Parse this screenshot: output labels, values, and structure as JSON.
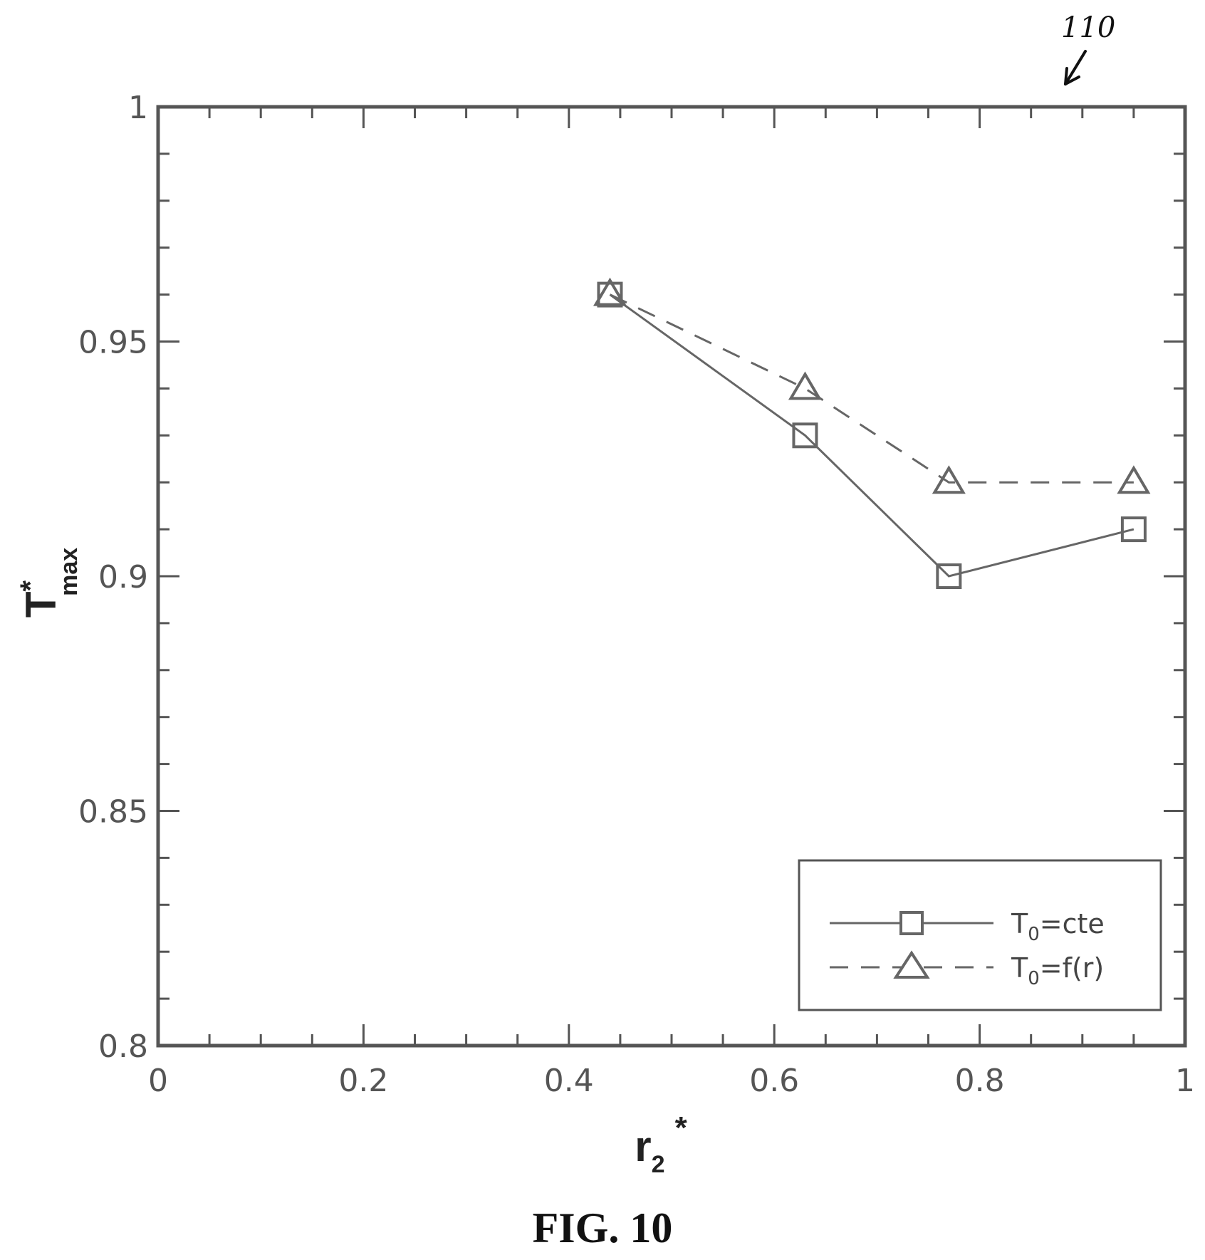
{
  "figure": {
    "caption": "FIG. 10",
    "reference_numeral": "110"
  },
  "chart_data": {
    "type": "line",
    "x_label": "r",
    "x_label_sub": "2",
    "x_label_sup": "*",
    "y_label": "T",
    "y_label_sup": "*",
    "y_label_sub": "max",
    "xlim": [
      0,
      1
    ],
    "ylim": [
      0.8,
      1
    ],
    "x_ticks": [
      0,
      0.2,
      0.4,
      0.6,
      0.8,
      1
    ],
    "x_tick_labels": [
      "0",
      "0.2",
      "0.4",
      "0.6",
      "0.8",
      "1"
    ],
    "y_ticks": [
      0.8,
      0.85,
      0.9,
      0.95,
      1
    ],
    "y_tick_labels": [
      "0.8",
      "0.85",
      "0.9",
      "0.95",
      "1"
    ],
    "grid": false,
    "legend_position": "bottom-right",
    "series": [
      {
        "name": "T0=cte",
        "legend_main": "T",
        "legend_sub": "0",
        "legend_rest": "=cte",
        "marker": "square",
        "line": "solid",
        "color": "#666666",
        "x": [
          0.44,
          0.63,
          0.77,
          0.95
        ],
        "y": [
          0.96,
          0.93,
          0.9,
          0.91
        ]
      },
      {
        "name": "T0=f(r)",
        "legend_main": "T",
        "legend_sub": "0",
        "legend_rest": "=f(r)",
        "marker": "triangle",
        "line": "dashed",
        "color": "#666666",
        "x": [
          0.44,
          0.63,
          0.77,
          0.95
        ],
        "y": [
          0.96,
          0.94,
          0.92,
          0.92
        ]
      }
    ]
  }
}
